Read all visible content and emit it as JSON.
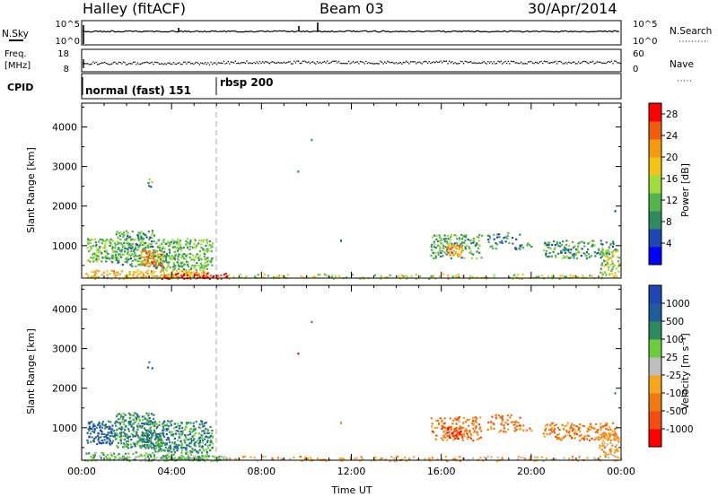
{
  "header": {
    "station": "Halley (fitACF)",
    "beam": "Beam 03",
    "date": "30/Apr/2014"
  },
  "strips": {
    "nsky": {
      "label": "N.Sky",
      "ticks_left": [
        "10^5",
        "10^0"
      ],
      "right_label": "N.Search",
      "ticks_right": [
        "10^5",
        "10^0"
      ]
    },
    "freq": {
      "label_line1": "Freq.",
      "label_line2": "[MHz]",
      "ticks_left": [
        "18",
        "8"
      ],
      "right_label": "Nave",
      "ticks_right": [
        "60",
        "0"
      ]
    },
    "cpid": {
      "label": "CPID",
      "segments": [
        {
          "name": "normal (fast) 151",
          "start_hour": 0
        },
        {
          "name": "rbsp 200",
          "start_hour": 6.0
        }
      ]
    }
  },
  "colors": {
    "power": [
      "#0000ff",
      "#1e46b4",
      "#2f8a5e",
      "#52b44a",
      "#9fdc3c",
      "#f3c316",
      "#f59a10",
      "#f05d0c",
      "#ff0000"
    ],
    "velocity": [
      "#ff0000",
      "#f04d10",
      "#f07a12",
      "#f5a61c",
      "#bdbdbd",
      "#6ccc3c",
      "#2f8a5e",
      "#1e5c9a",
      "#1e46b4"
    ]
  },
  "chart_data": [
    {
      "type": "heatmap",
      "name": "power",
      "xlabel": "",
      "ylabel": "Slant Range [km]",
      "x_range_hours": [
        0,
        24
      ],
      "ylim": [
        180,
        4600
      ],
      "y_ticks": [
        1000,
        2000,
        3000,
        4000
      ],
      "colorbar": {
        "label": "Power [dB]",
        "ticks": [
          "4",
          "8",
          "12",
          "16",
          "20",
          "24",
          "28"
        ],
        "range": [
          0,
          30
        ]
      },
      "clusters": [
        {
          "t0": 0.2,
          "t1": 1.5,
          "r0": 600,
          "r1": 1200,
          "v": 12,
          "dens": 0.7
        },
        {
          "t0": 1.5,
          "t1": 3.2,
          "r0": 500,
          "r1": 1400,
          "v": 10,
          "dens": 0.75
        },
        {
          "t0": 2.6,
          "t1": 3.6,
          "r0": 500,
          "r1": 900,
          "v": 24,
          "dens": 0.85
        },
        {
          "t0": 3.2,
          "t1": 5.8,
          "r0": 400,
          "r1": 1200,
          "v": 11,
          "dens": 0.7
        },
        {
          "t0": 0.1,
          "t1": 5.6,
          "r0": 180,
          "r1": 400,
          "v": 20,
          "dens": 0.6
        },
        {
          "t0": 3.5,
          "t1": 6.5,
          "r0": 180,
          "r1": 320,
          "v": 28,
          "dens": 0.9
        },
        {
          "t0": 2.9,
          "t1": 3.1,
          "r0": 2500,
          "r1": 2900,
          "v": 10,
          "dens": 0.4
        },
        {
          "t0": 6.5,
          "t1": 24.0,
          "r0": 180,
          "r1": 300,
          "v": 16,
          "dens": 0.35
        },
        {
          "t0": 15.5,
          "t1": 17.8,
          "r0": 700,
          "r1": 1300,
          "v": 10,
          "dens": 0.45
        },
        {
          "t0": 16.2,
          "t1": 16.9,
          "r0": 750,
          "r1": 1050,
          "v": 22,
          "dens": 0.8
        },
        {
          "t0": 18.0,
          "t1": 19.5,
          "r0": 900,
          "r1": 1350,
          "v": 8,
          "dens": 0.3
        },
        {
          "t0": 19.2,
          "t1": 20.0,
          "r0": 950,
          "r1": 1100,
          "v": 8,
          "dens": 0.35
        },
        {
          "t0": 20.5,
          "t1": 23.8,
          "r0": 700,
          "r1": 1150,
          "v": 9,
          "dens": 0.5
        },
        {
          "t0": 23.0,
          "t1": 23.9,
          "r0": 300,
          "r1": 900,
          "v": 14,
          "dens": 0.55
        }
      ],
      "points": [
        {
          "t": 10.2,
          "r": 3700,
          "v": 8
        },
        {
          "t": 9.6,
          "r": 2900,
          "v": 8
        },
        {
          "t": 23.7,
          "r": 1900,
          "v": 4
        },
        {
          "t": 11.5,
          "r": 1150,
          "v": 4
        }
      ]
    },
    {
      "type": "heatmap",
      "name": "velocity",
      "xlabel": "Time UT",
      "ylabel": "Slant Range [km]",
      "x_range_hours": [
        0,
        24
      ],
      "ylim": [
        180,
        4600
      ],
      "y_ticks": [
        1000,
        2000,
        3000,
        4000
      ],
      "x_ticks": [
        "00:00",
        "04:00",
        "08:00",
        "12:00",
        "16:00",
        "20:00",
        "00:00"
      ],
      "colorbar": {
        "label": "Velocity [m s⁻¹]",
        "ticks": [
          "-1000",
          "-500",
          "-100",
          "-25",
          "25",
          "100",
          "500",
          "1000"
        ]
      },
      "clusters": [
        {
          "t0": 0.2,
          "t1": 1.5,
          "r0": 600,
          "r1": 1200,
          "v": 7,
          "dens": 0.7
        },
        {
          "t0": 1.5,
          "t1": 3.2,
          "r0": 500,
          "r1": 1400,
          "v": 6,
          "dens": 0.75
        },
        {
          "t0": 2.6,
          "t1": 3.6,
          "r0": 500,
          "r1": 900,
          "v": 6,
          "dens": 0.85
        },
        {
          "t0": 3.2,
          "t1": 5.8,
          "r0": 400,
          "r1": 1200,
          "v": 6,
          "dens": 0.7
        },
        {
          "t0": 0.1,
          "t1": 5.6,
          "r0": 180,
          "r1": 400,
          "v": 5,
          "dens": 0.6
        },
        {
          "t0": 3.5,
          "t1": 6.5,
          "r0": 180,
          "r1": 320,
          "v": 5,
          "dens": 0.9
        },
        {
          "t0": 2.9,
          "t1": 3.1,
          "r0": 2500,
          "r1": 2900,
          "v": 6,
          "dens": 0.4
        },
        {
          "t0": 6.5,
          "t1": 24.0,
          "r0": 180,
          "r1": 300,
          "v": 3,
          "dens": 0.35
        },
        {
          "t0": 15.5,
          "t1": 17.8,
          "r0": 700,
          "r1": 1300,
          "v": 2,
          "dens": 0.45
        },
        {
          "t0": 16.2,
          "t1": 16.9,
          "r0": 750,
          "r1": 1050,
          "v": 1,
          "dens": 0.8
        },
        {
          "t0": 18.0,
          "t1": 19.5,
          "r0": 900,
          "r1": 1350,
          "v": 2,
          "dens": 0.3
        },
        {
          "t0": 19.2,
          "t1": 20.0,
          "r0": 950,
          "r1": 1100,
          "v": 2,
          "dens": 0.35
        },
        {
          "t0": 20.5,
          "t1": 23.8,
          "r0": 700,
          "r1": 1150,
          "v": 2,
          "dens": 0.5
        },
        {
          "t0": 23.0,
          "t1": 23.9,
          "r0": 300,
          "r1": 900,
          "v": 3,
          "dens": 0.55
        }
      ],
      "points": [
        {
          "t": 10.2,
          "r": 3700,
          "v": 6
        },
        {
          "t": 9.6,
          "r": 2900,
          "v": 0
        },
        {
          "t": 23.7,
          "r": 1900,
          "v": 6
        },
        {
          "t": 11.5,
          "r": 1150,
          "v": 2
        }
      ]
    }
  ]
}
